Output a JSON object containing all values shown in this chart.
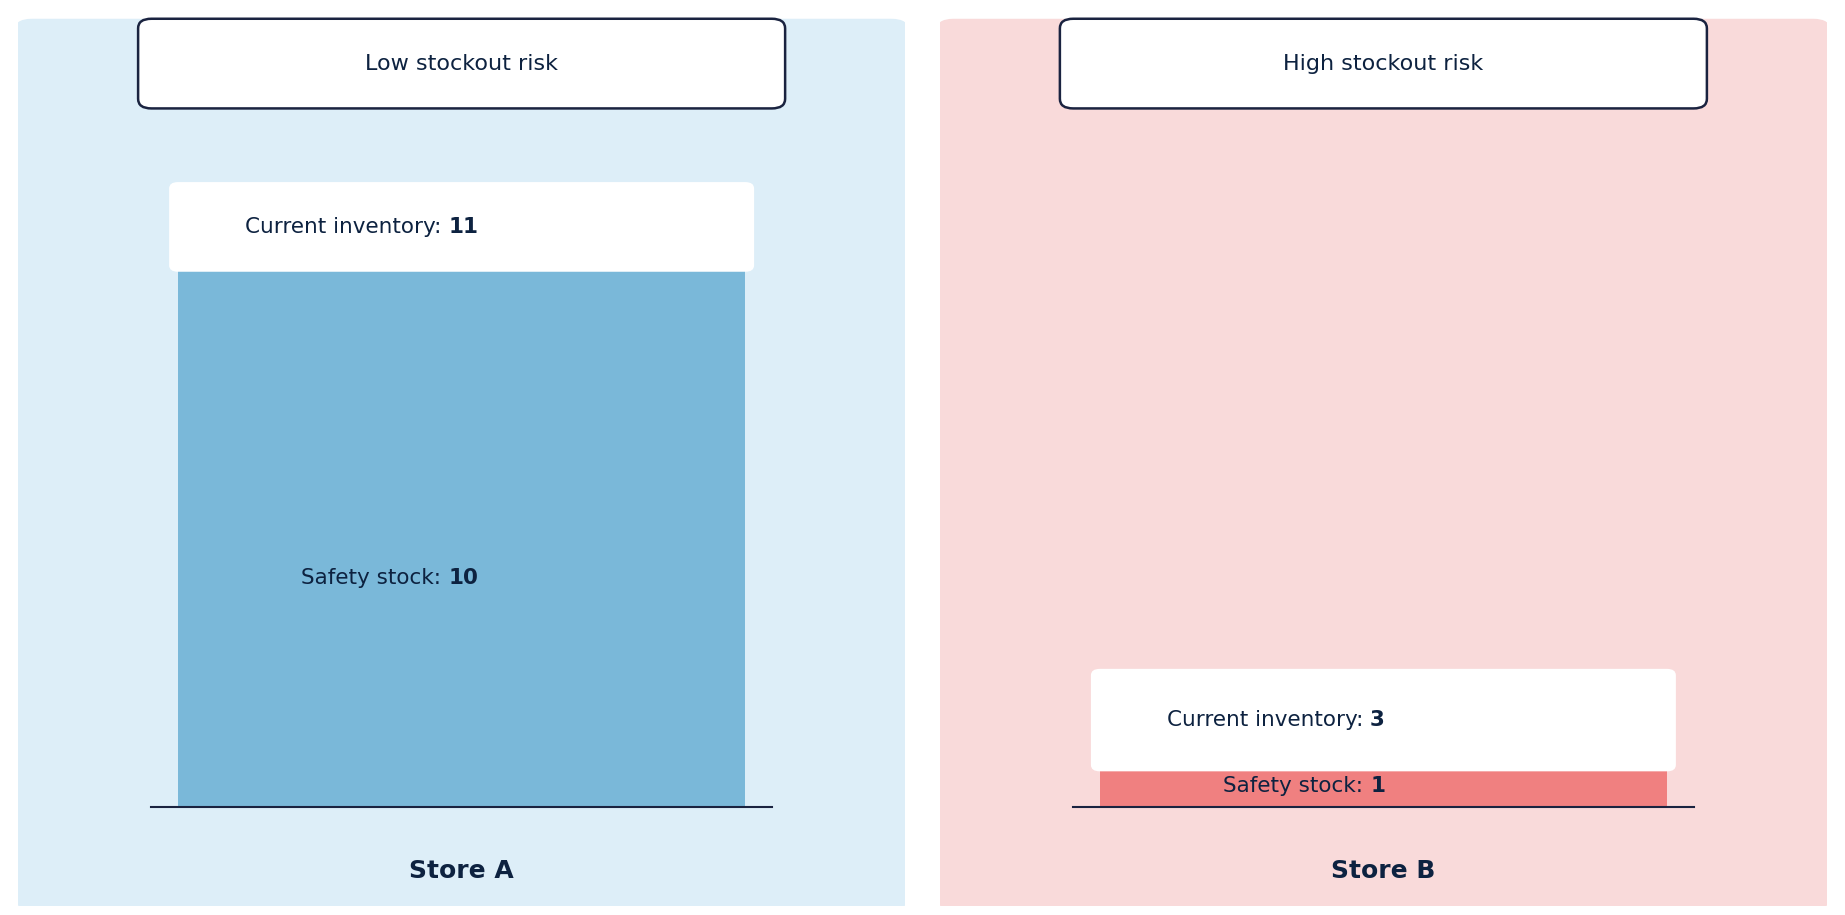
{
  "fig_width": 18.45,
  "fig_height": 9.15,
  "fig_bg": "#ffffff",
  "store_a": {
    "panel_bg": "#ddeef8",
    "panel_label": "Low stockout risk",
    "panel_label_bg": "#ffffff",
    "panel_label_border": "#1a2340",
    "store_name": "Store A",
    "current_inventory": 11,
    "safety_stock": 10,
    "bar_color": "#7ab8d9",
    "text_color": "#0d2240"
  },
  "store_b": {
    "panel_bg": "#f9dada",
    "panel_label": "High stockout risk",
    "panel_label_bg": "#ffffff",
    "panel_label_border": "#1a2340",
    "store_name": "Store B",
    "current_inventory": 3,
    "safety_stock": 1,
    "bar_color": "#f08080",
    "text_color": "#0d2240"
  }
}
